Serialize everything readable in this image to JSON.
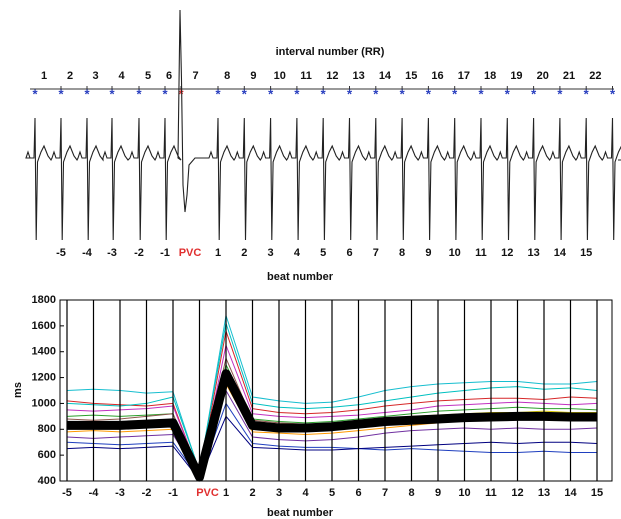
{
  "chart_data": [
    {
      "type": "ecg",
      "x_label_top": "interval number (RR)",
      "intervals": [
        "1",
        "2",
        "3",
        "4",
        "5",
        "6",
        "7",
        "8",
        "9",
        "10",
        "11",
        "12",
        "13",
        "14",
        "15",
        "16",
        "17",
        "18",
        "19",
        "20",
        "21",
        "22"
      ],
      "x_label": "beat number",
      "categories": [
        "-5",
        "-4",
        "-3",
        "-2",
        "-1",
        "PVC",
        "1",
        "2",
        "3",
        "4",
        "5",
        "6",
        "7",
        "8",
        "9",
        "10",
        "11",
        "12",
        "13",
        "14",
        "15"
      ],
      "highlight": "PVC",
      "highlight_color": "#e03030",
      "marker_color": "#2a3fbf"
    },
    {
      "type": "line",
      "y_label": "ms",
      "x_label": "beat number",
      "categories": [
        "-5",
        "-4",
        "-3",
        "-2",
        "-1",
        "PVC",
        "1",
        "2",
        "3",
        "4",
        "5",
        "6",
        "7",
        "8",
        "9",
        "10",
        "11",
        "12",
        "13",
        "14",
        "15"
      ],
      "highlight": "PVC",
      "highlight_color": "#e03030",
      "ylim": [
        400,
        1800
      ],
      "yticks": [
        400,
        600,
        800,
        1000,
        1200,
        1400,
        1600,
        1800
      ],
      "grid": "x",
      "series": [
        {
          "color": "#17becf",
          "values": [
            1100,
            1110,
            1100,
            1080,
            1090,
            470,
            1680,
            1050,
            1020,
            1000,
            1010,
            1050,
            1100,
            1130,
            1150,
            1160,
            1170,
            1170,
            1150,
            1150,
            1170
          ]
        },
        {
          "color": "#d62728",
          "values": [
            1020,
            1000,
            990,
            980,
            1000,
            450,
            1560,
            960,
            930,
            920,
            930,
            950,
            980,
            1000,
            1020,
            1030,
            1040,
            1040,
            1030,
            1050,
            1040
          ]
        },
        {
          "color": "#1f3fbf",
          "values": [
            700,
            690,
            680,
            690,
            700,
            420,
            1000,
            690,
            670,
            660,
            660,
            650,
            640,
            650,
            640,
            630,
            620,
            620,
            630,
            620,
            620
          ]
        },
        {
          "color": "#2ca02c",
          "values": [
            900,
            910,
            900,
            910,
            920,
            440,
            1300,
            880,
            860,
            850,
            860,
            880,
            900,
            920,
            940,
            950,
            960,
            970,
            960,
            960,
            950
          ]
        },
        {
          "color": "#c030c0",
          "values": [
            950,
            940,
            950,
            960,
            980,
            460,
            1450,
            920,
            900,
            890,
            900,
            910,
            930,
            950,
            980,
            990,
            1000,
            1010,
            1000,
            990,
            1000
          ]
        },
        {
          "color": "#ff9900",
          "values": [
            780,
            790,
            780,
            790,
            800,
            430,
            1150,
            780,
            770,
            760,
            770,
            790,
            810,
            830,
            850,
            870,
            880,
            890,
            880,
            880,
            890
          ]
        },
        {
          "color": "#d4c300",
          "values": [
            860,
            850,
            840,
            860,
            870,
            440,
            1250,
            850,
            830,
            830,
            840,
            860,
            880,
            900,
            910,
            920,
            930,
            930,
            940,
            930,
            930
          ]
        },
        {
          "color": "#000080",
          "values": [
            650,
            660,
            650,
            660,
            670,
            410,
            900,
            660,
            650,
            640,
            640,
            650,
            660,
            670,
            680,
            690,
            700,
            690,
            700,
            700,
            690
          ]
        },
        {
          "color": "#00c0c0",
          "values": [
            1000,
            990,
            980,
            1000,
            1050,
            480,
            1620,
            1000,
            970,
            960,
            970,
            990,
            1020,
            1050,
            1080,
            1100,
            1120,
            1130,
            1110,
            1120,
            1100
          ]
        },
        {
          "color": "#7030a0",
          "values": [
            740,
            730,
            740,
            750,
            760,
            430,
            1100,
            740,
            720,
            710,
            720,
            740,
            770,
            790,
            800,
            810,
            800,
            810,
            800,
            800,
            810
          ]
        },
        {
          "color": "#66cc33",
          "values": [
            820,
            830,
            820,
            830,
            840,
            440,
            1200,
            820,
            800,
            790,
            800,
            820,
            840,
            860,
            870,
            880,
            890,
            880,
            890,
            880,
            880
          ]
        },
        {
          "color": "#8c564b",
          "values": [
            880,
            870,
            880,
            900,
            920,
            450,
            1350,
            870,
            850,
            840,
            840,
            850,
            860,
            870,
            880,
            880,
            890,
            900,
            890,
            900,
            890
          ]
        },
        {
          "color": "#000000",
          "line_width": 9,
          "values": [
            830,
            830,
            830,
            840,
            850,
            430,
            1230,
            830,
            810,
            810,
            820,
            840,
            860,
            870,
            880,
            890,
            895,
            900,
            900,
            895,
            895
          ]
        }
      ]
    }
  ]
}
